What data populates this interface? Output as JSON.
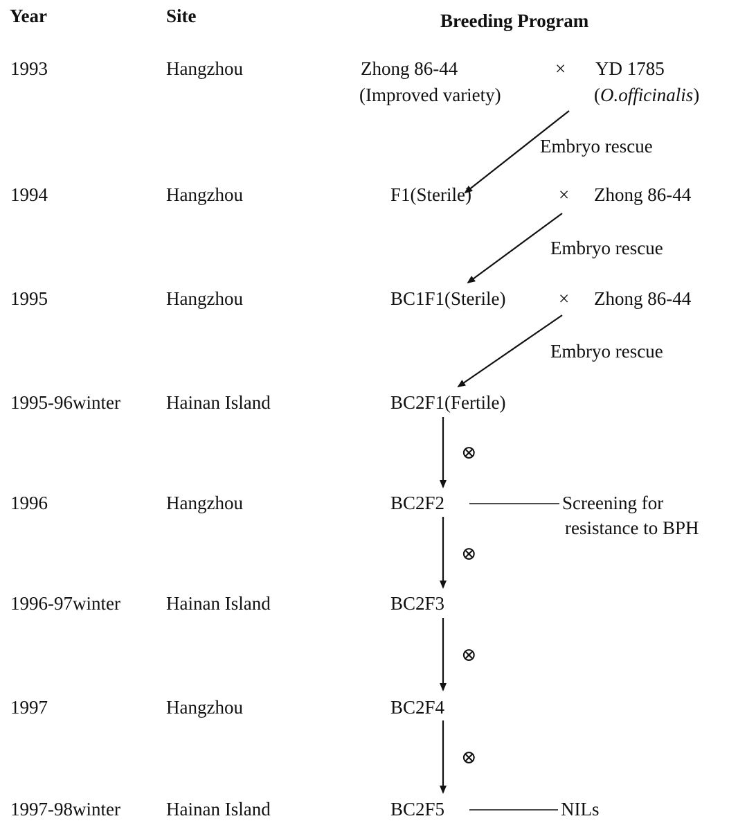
{
  "headers": {
    "year": "Year",
    "site": "Site",
    "program": "Breeding Program"
  },
  "rows": [
    {
      "year": "1993",
      "site": "Hangzhou"
    },
    {
      "year": "1994",
      "site": "Hangzhou"
    },
    {
      "year": "1995",
      "site": "Hangzhou"
    },
    {
      "year": "1995-96winter",
      "site": "Hainan Island"
    },
    {
      "year": "1996",
      "site": "Hangzhou"
    },
    {
      "year": "1996-97winter",
      "site": "Hainan Island"
    },
    {
      "year": "1997",
      "site": "Hangzhou"
    },
    {
      "year": "1997-98winter",
      "site": "Hainan Island"
    }
  ],
  "program": {
    "parent_female": "Zhong 86-44",
    "parent_female_note": "(Improved variety)",
    "cross_symbol": "×",
    "parent_male": "YD 1785",
    "parent_male_note_open": "(",
    "parent_male_note_species": "O.officinalis",
    "parent_male_note_close": ")",
    "embryo_rescue": "Embryo rescue",
    "selfing_symbol": "⊗",
    "generations": {
      "f1": "F1(Sterile)",
      "bc1f1": "BC1F1(Sterile)",
      "bc2f1": "BC2F1(Fertile)",
      "bc2f2": "BC2F2",
      "bc2f3": "BC2F3",
      "bc2f4": "BC2F4",
      "bc2f5": "BC2F5"
    },
    "recurrent_parent": "Zhong 86-44",
    "screening_line1": "Screening for",
    "screening_line2": "resistance to BPH",
    "nils": "NILs"
  },
  "colors": {
    "ink": "#111111",
    "background": "#ffffff"
  }
}
